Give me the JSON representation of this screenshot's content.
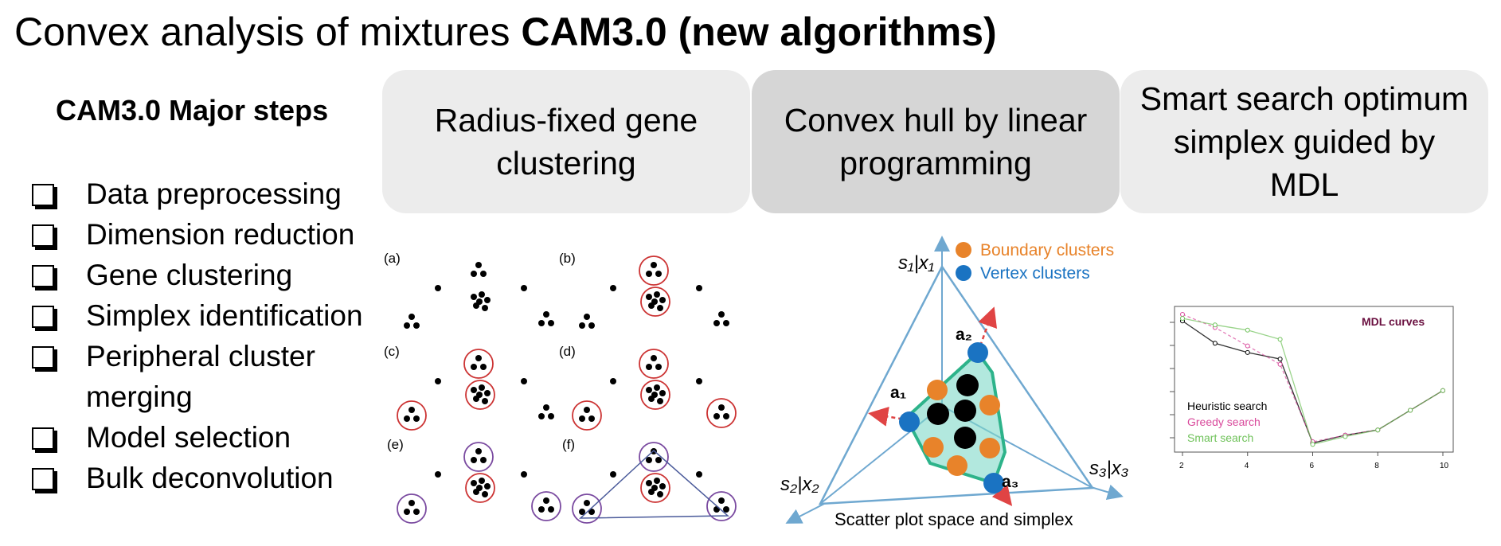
{
  "title": {
    "normal": "Convex analysis of mixtures ",
    "bold": "CAM3.0 (new algorithms)"
  },
  "steps": {
    "heading": "CAM3.0 Major steps",
    "items": [
      "Data preprocessing",
      "Dimension reduction",
      "Gene clustering",
      "Simplex identification",
      "Peripheral cluster merging",
      "Model selection",
      "Bulk deconvolution"
    ]
  },
  "cards": {
    "clustering": "Radius-fixed gene clustering",
    "convex_hull": "Convex hull by linear programming",
    "smart_search": "Smart search optimum simplex guided by MDL"
  },
  "cluster_panels": {
    "a": "(a)",
    "b": "(b)",
    "c": "(c)",
    "d": "(d)",
    "e": "(e)",
    "f": "(f)"
  },
  "simplex": {
    "legend_boundary": "Boundary clusters",
    "legend_vertex": "Vertex clusters",
    "axis_top": "s₁|x₁",
    "axis_left": "s₂|x₂",
    "axis_right": "s₃|x₃",
    "a1": "a₁",
    "a2": "a₂",
    "a3": "a₃",
    "caption": "Scatter plot space and simplex",
    "colors": {
      "boundary": "#e8832a",
      "vertex": "#1a73c2",
      "axis": "#6fa8d0",
      "hull": "#2db38a"
    }
  },
  "mdl": {
    "title": "MDL curves",
    "legend": [
      "Heuristic search",
      "Greedy search",
      "Smart search"
    ],
    "colors": [
      "#000000",
      "#d94a9c",
      "#6fc25a"
    ]
  },
  "chart_data": {
    "type": "line",
    "title": "MDL curves",
    "xlabel": "",
    "ylabel": "",
    "x_ticks": [
      2,
      4,
      6,
      8,
      10
    ],
    "xlim": [
      2,
      10
    ],
    "series": [
      {
        "name": "Heuristic search",
        "x": [
          2,
          3,
          4,
          5,
          6,
          7,
          8,
          9,
          10
        ],
        "y": [
          0.95,
          0.78,
          0.71,
          0.66,
          0.02,
          0.08,
          0.12,
          0.27,
          0.42
        ]
      },
      {
        "name": "Greedy search",
        "x": [
          2,
          3,
          4,
          5,
          6,
          7,
          8,
          9,
          10
        ],
        "y": [
          1.0,
          0.9,
          0.76,
          0.62,
          0.03,
          0.08,
          0.12,
          0.27,
          0.42
        ]
      },
      {
        "name": "Smart search",
        "x": [
          2,
          3,
          4,
          5,
          6,
          7,
          8,
          9,
          10
        ],
        "y": [
          0.97,
          0.92,
          0.88,
          0.81,
          0.01,
          0.07,
          0.12,
          0.27,
          0.42
        ]
      }
    ]
  }
}
